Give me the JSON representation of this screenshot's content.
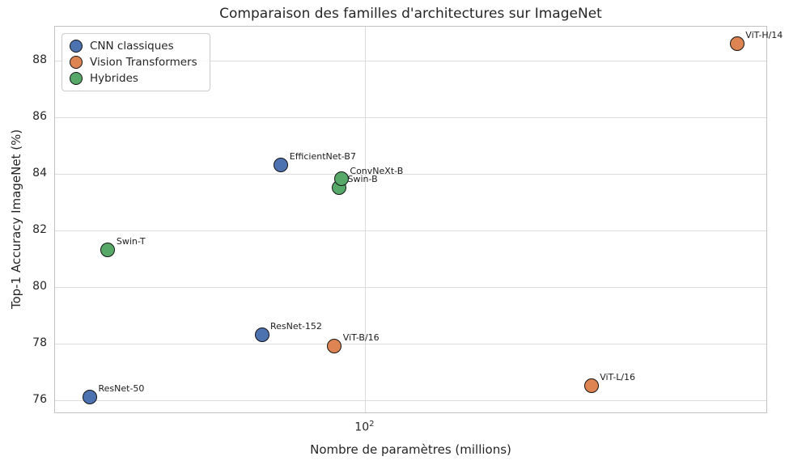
{
  "title": "Comparaison des familles d'architectures sur ImageNet",
  "axes": {
    "xlabel": "Nombre de paramètres (millions)",
    "ylabel": "Top-1 Accuracy ImageNet (%)",
    "y_ticks": [
      88,
      86,
      84,
      82,
      80,
      78,
      76
    ],
    "x_tick": {
      "base": "10",
      "exponent": "2",
      "value": 100
    }
  },
  "legend": {
    "items": [
      {
        "label": "CNN classiques",
        "color": "#4C72B0"
      },
      {
        "label": "Vision Transformers",
        "color": "#DD8452"
      },
      {
        "label": "Hybrides",
        "color": "#55A868"
      }
    ]
  },
  "chart_data": {
    "type": "scatter",
    "title": "Comparaison des familles d'architectures sur ImageNet",
    "xlabel": "Nombre de paramètres (millions)",
    "ylabel": "Top-1 Accuracy ImageNet (%)",
    "x_scale": "log",
    "xlim": [
      21.5,
      735
    ],
    "ylim": [
      75.5,
      89.2
    ],
    "grid": true,
    "legend_position": "upper left",
    "series": [
      {
        "name": "CNN classiques",
        "color": "#4C72B0",
        "points": [
          {
            "label": "ResNet-50",
            "params_millions": 25.6,
            "top1_accuracy": 76.1
          },
          {
            "label": "ResNet-152",
            "params_millions": 60,
            "top1_accuracy": 78.3
          },
          {
            "label": "EfficientNet-B7",
            "params_millions": 66,
            "top1_accuracy": 84.3
          }
        ]
      },
      {
        "name": "Vision Transformers",
        "color": "#DD8452",
        "points": [
          {
            "label": "ViT-B/16",
            "params_millions": 86,
            "top1_accuracy": 77.9
          },
          {
            "label": "ViT-L/16",
            "params_millions": 307,
            "top1_accuracy": 76.5
          },
          {
            "label": "ViT-H/14",
            "params_millions": 632,
            "top1_accuracy": 88.6
          }
        ]
      },
      {
        "name": "Hybrides",
        "color": "#55A868",
        "points": [
          {
            "label": "Swin-T",
            "params_millions": 28,
            "top1_accuracy": 81.3
          },
          {
            "label": "Swin-B",
            "params_millions": 88,
            "top1_accuracy": 83.5
          },
          {
            "label": "ConvNeXt-B",
            "params_millions": 89,
            "top1_accuracy": 83.8
          }
        ]
      }
    ]
  }
}
